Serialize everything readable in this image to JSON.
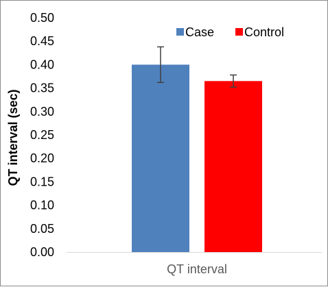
{
  "chart_data": {
    "type": "bar",
    "categories": [
      "QT interval"
    ],
    "series": [
      {
        "name": "Case",
        "values": [
          0.4
        ],
        "error": [
          0.038
        ],
        "color": "#4f81bd"
      },
      {
        "name": "Control",
        "values": [
          0.365
        ],
        "error": [
          0.013
        ],
        "color": "#ff0000"
      }
    ],
    "ylabel": "QT interval (sec)",
    "ylim": [
      0,
      0.5
    ],
    "yticks": [
      "0.00",
      "0.05",
      "0.10",
      "0.15",
      "0.20",
      "0.25",
      "0.30",
      "0.35",
      "0.40",
      "0.45",
      "0.50"
    ],
    "grid": false,
    "legend": "top-right"
  }
}
